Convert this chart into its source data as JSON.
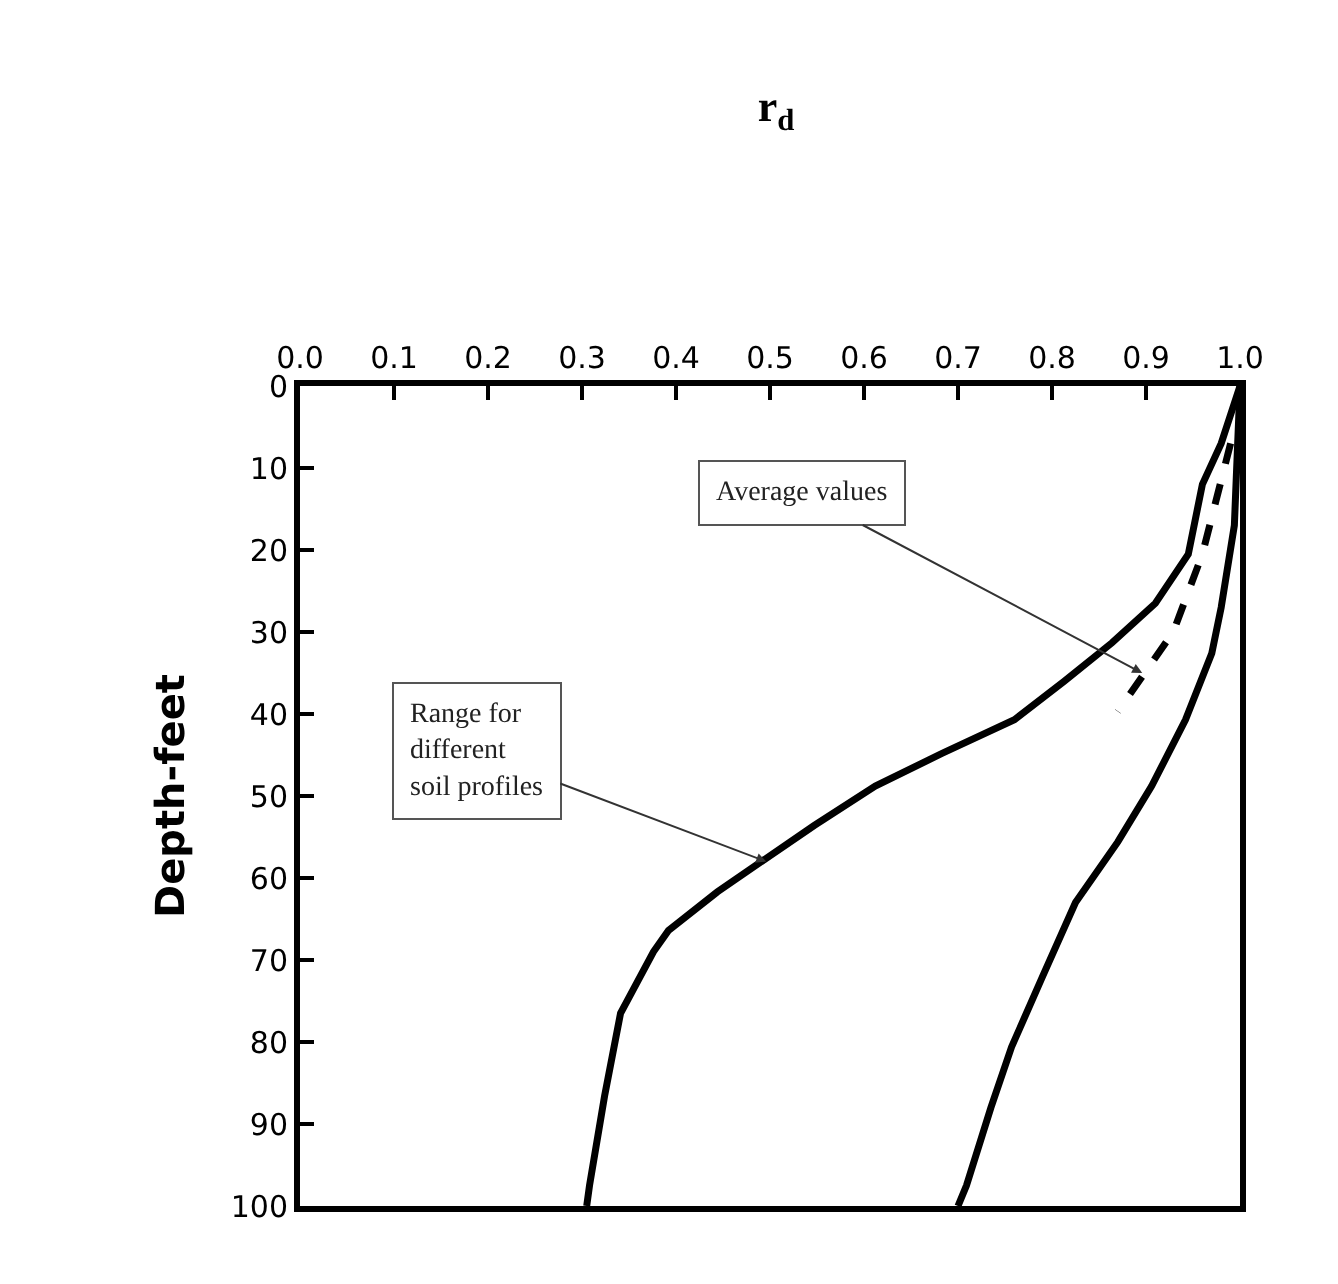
{
  "chart_data": {
    "type": "line",
    "title": "r$_{d}$",
    "ylabel": "Depth-feet",
    "xlim": [
      0,
      1
    ],
    "xticks": [
      {
        "value": 0,
        "label": "0.0"
      },
      {
        "value": 0.1,
        "label": "0.1"
      },
      {
        "value": 0.2,
        "label": "0.2"
      },
      {
        "value": 0.3,
        "label": "0.3"
      },
      {
        "value": 0.4,
        "label": "0.4"
      },
      {
        "value": 0.5,
        "label": "0.5"
      },
      {
        "value": 0.6,
        "label": "0.6"
      },
      {
        "value": 0.7,
        "label": "0.7"
      },
      {
        "value": 0.8,
        "label": "0.8"
      },
      {
        "value": 0.9,
        "label": "0.9"
      },
      {
        "value": 1,
        "label": "1.0"
      }
    ],
    "ylim": [
      100,
      0
    ],
    "yticks": [
      0,
      10,
      20,
      30,
      40,
      50,
      60,
      70,
      80,
      90,
      100
    ],
    "grid": false,
    "marker": "none",
    "series": [
      {
        "color": "#000000",
        "line_style": "solid",
        "x": [
          1.0,
          0.98,
          0.96,
          0.945,
          0.91,
          0.864,
          0.813,
          0.76,
          0.683,
          0.612,
          0.547,
          0.496,
          0.444,
          0.392,
          0.376,
          0.341,
          0.324,
          0.308,
          0.305
        ],
        "values": [
          0,
          7,
          12,
          20.5,
          26.5,
          31.3,
          36,
          40.7,
          44.8,
          48.8,
          53.6,
          57.6,
          61.7,
          66.4,
          69,
          76.5,
          86.6,
          97.5,
          100
        ]
      },
      {
        "color": "#000000",
        "line_style": "solid",
        "x": [
          1.0,
          0.994,
          0.98,
          0.97,
          0.942,
          0.906,
          0.87,
          0.825,
          0.79,
          0.757,
          0.735,
          0.709,
          0.7
        ],
        "values": [
          0,
          17,
          27,
          32.6,
          40.7,
          48.8,
          55.6,
          63,
          72,
          80.6,
          88,
          97.5,
          100
        ]
      },
      {
        "color": "#000000",
        "line_style": "dashed",
        "x": [
          0.99,
          0.96,
          0.929,
          0.87
        ],
        "values": [
          7,
          20.5,
          30,
          39.7
        ]
      }
    ],
    "annotations": [
      {
        "text": "Average values",
        "x": 0.896,
        "y": 35
      },
      {
        "text": "Range for\ndifferent\nsoil profiles",
        "x": 0.496,
        "y": 58
      }
    ]
  }
}
